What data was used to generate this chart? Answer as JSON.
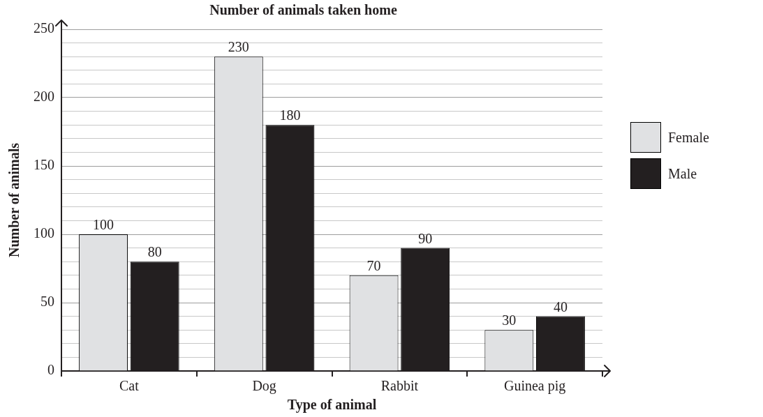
{
  "chart_data": {
    "type": "bar",
    "title": "Number of animals taken home",
    "xlabel": "Type of animal",
    "ylabel": "Number of animals",
    "categories": [
      "Cat",
      "Dog",
      "Rabbit",
      "Guinea pig"
    ],
    "series": [
      {
        "name": "Female",
        "color": "#e0e1e3",
        "values": [
          100,
          230,
          70,
          30
        ]
      },
      {
        "name": "Male",
        "color": "#231f20",
        "values": [
          80,
          180,
          90,
          40
        ]
      }
    ],
    "ylim": [
      0,
      250
    ],
    "yticks": [
      0,
      {
        "value": 10,
        "label": null
      },
      {
        "value": 20,
        "label": null
      },
      {
        "value": 30,
        "label": null
      },
      {
        "value": 40,
        "label": null
      },
      50,
      {
        "value": 60,
        "label": null
      },
      {
        "value": 70,
        "label": null
      },
      {
        "value": 80,
        "label": null
      },
      {
        "value": 90,
        "label": null
      },
      100,
      {
        "value": 110,
        "label": null
      },
      {
        "value": 120,
        "label": null
      },
      {
        "value": 130,
        "label": null
      },
      {
        "value": 140,
        "label": null
      },
      150,
      {
        "value": 160,
        "label": null
      },
      {
        "value": 170,
        "label": null
      },
      {
        "value": 180,
        "label": null
      },
      {
        "value": 190,
        "label": null
      },
      200,
      {
        "value": 210,
        "label": null
      },
      {
        "value": 220,
        "label": null
      },
      {
        "value": 230,
        "label": null
      },
      {
        "value": 240,
        "label": null
      },
      250
    ],
    "grid": true,
    "legend": "right",
    "data_labels": true
  }
}
